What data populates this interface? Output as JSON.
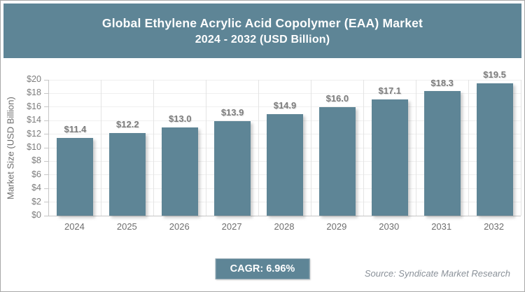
{
  "header": {
    "title_line1": "Global Ethylene Acrylic Acid Copolymer (EAA) Market",
    "title_line2": "2024 - 2032 (USD Billion)"
  },
  "chart_data": {
    "type": "bar",
    "title": "Global Ethylene Acrylic Acid Copolymer (EAA) Market 2024 - 2032 (USD Billion)",
    "categories": [
      "2024",
      "2025",
      "2026",
      "2027",
      "2028",
      "2029",
      "2030",
      "2031",
      "2032"
    ],
    "values": [
      11.4,
      12.2,
      13.0,
      13.9,
      14.9,
      16.0,
      17.1,
      18.3,
      19.5
    ],
    "value_label_prefix": "$",
    "xlabel": "",
    "ylabel": "Market Size (USD Billion)",
    "ylim": [
      0,
      20
    ],
    "ytick_step": 2,
    "ytick_prefix": "$",
    "grid": "on",
    "legend": "none",
    "bar_color": "#5e8596"
  },
  "footer": {
    "cagr_label": "CAGR: 6.96%",
    "source": "Source: Syndicate Market Research"
  },
  "colors": {
    "header_bg": "#5e8596",
    "bar": "#5e8596",
    "badge_bg": "#5e8596",
    "axis_line": "#c6c6c6",
    "tick_text": "#7d7d7d",
    "value_label_text": "#7d7d7d",
    "source_text": "#8a9199"
  }
}
